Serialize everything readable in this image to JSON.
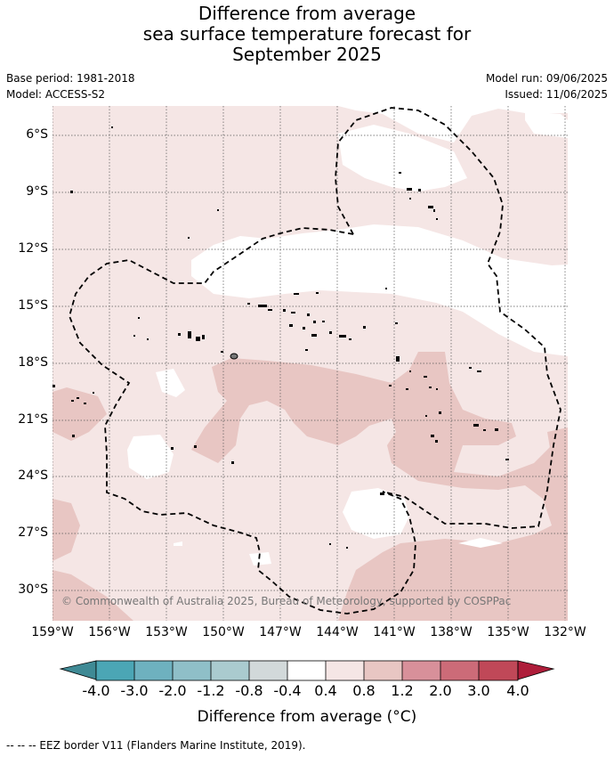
{
  "title": {
    "line1": "Difference from average",
    "line2": "sea surface temperature forecast for",
    "line3": "September 2025"
  },
  "meta": {
    "base_period": "Base period: 1981-2018",
    "model": "Model: ACCESS-S2",
    "model_run": "Model run: 09/06/2025",
    "issued": "Issued: 11/06/2025"
  },
  "map": {
    "y_labels": [
      "6°S",
      "9°S",
      "12°S",
      "15°S",
      "18°S",
      "21°S",
      "24°S",
      "27°S",
      "30°S"
    ],
    "x_labels": [
      "159°W",
      "156°W",
      "153°W",
      "150°W",
      "147°W",
      "144°W",
      "141°W",
      "138°W",
      "135°W",
      "132°W"
    ],
    "copyright": "© Commonwealth of Australia 2025, Bureau of Meteorology, supported by COSPPac",
    "colors": {
      "level_0_4_to_0_8": "#f5e6e5",
      "level_0_8_to_1_2": "#e8c6c3",
      "neutral": "#ffffff",
      "eez_border": "#000000"
    }
  },
  "colorbar": {
    "ticks": [
      "-4.0",
      "-3.0",
      "-2.0",
      "-1.2",
      "-0.8",
      "-0.4",
      "0.4",
      "0.8",
      "1.2",
      "2.0",
      "3.0",
      "4.0"
    ],
    "colors": [
      "#3f8a95",
      "#4ba6b5",
      "#6eb1bf",
      "#8fbfc8",
      "#aacbcf",
      "#d2d9da",
      "#ffffff",
      "#f5e6e5",
      "#e8c6c3",
      "#d8909a",
      "#cc6b78",
      "#c04858",
      "#ae1d3a"
    ],
    "label": "Difference from average (°C)"
  },
  "footnote": "--  --  -- EEZ border V11 (Flanders Marine Institute, 2019)."
}
